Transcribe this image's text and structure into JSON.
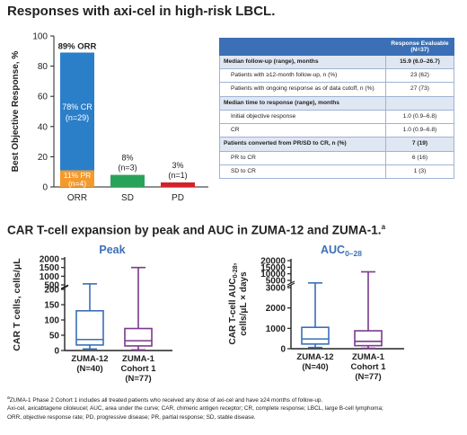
{
  "titles": {
    "top": "Responses with axi-cel in high-risk LBCL.",
    "bottom_main": "CAR T-cell expansion by peak and AUC in ZUMA-12 and ZUMA-1.",
    "bottom_sup": "a"
  },
  "chart_data": [
    {
      "type": "bar",
      "ylabel": "Best Objective Response, %",
      "ylim": [
        0,
        100
      ],
      "yticks": [
        0,
        20,
        40,
        60,
        80,
        100
      ],
      "categories": [
        "ORR",
        "SD",
        "PD"
      ],
      "series": [
        {
          "values": [
            78,
            0,
            0
          ],
          "color": "#2b7fc9"
        },
        {
          "values": [
            11,
            8,
            3
          ],
          "colors": [
            "#f39a2c",
            "#2aa35a",
            "#d62028"
          ]
        }
      ],
      "annotations": {
        "orr_top": "89% ORR",
        "cr_line1": "78% CR",
        "cr_line2": "(n=29)",
        "pr_line1": "11% PR",
        "pr_line2": "(n=4)",
        "sd_line1": "8%",
        "sd_line2": "(n=3)",
        "pd_line1": "3%",
        "pd_line2": "(n=1)"
      }
    },
    {
      "type": "box",
      "title": "Peak",
      "ylabel": "CAR T cells, cells/μL",
      "yticks": [
        "0",
        "50",
        "100",
        "150",
        "200",
        "500",
        "1000",
        "1500",
        "2000"
      ],
      "categories": [
        {
          "line1": "ZUMA-12",
          "line2": "(N=40)"
        },
        {
          "line1": "ZUMA-1",
          "line2": "Cohort 1",
          "line3": "(N=77)"
        }
      ],
      "boxes": [
        {
          "min": 5,
          "q1": 18,
          "median": 36,
          "q3": 130,
          "max": 560,
          "color": "#3b6fb6"
        },
        {
          "min": 2,
          "q1": 15,
          "median": 32,
          "q3": 72,
          "max": 1500,
          "color": "#7a3a8c"
        }
      ]
    },
    {
      "type": "box",
      "title_main": "AUC",
      "title_sub": "0–28",
      "ylabel_line1": "CAR T-cell AUC",
      "ylabel_sub": "0-28",
      "ylabel_line1_end": ",",
      "ylabel_line2": "cells/μL × days",
      "yticks": [
        "0",
        "1000",
        "2000",
        "3000",
        "5000",
        "10000",
        "15000",
        "20000"
      ],
      "categories": [
        {
          "line1": "ZUMA-12",
          "line2": "(N=40)"
        },
        {
          "line1": "ZUMA-1",
          "line2": "Cohort 1",
          "line3": "(N=77)"
        }
      ],
      "boxes": [
        {
          "min": 60,
          "q1": 230,
          "median": 480,
          "q3": 1050,
          "max": 4300,
          "color": "#3b6fb6"
        },
        {
          "min": 20,
          "q1": 150,
          "median": 360,
          "q3": 880,
          "max": 11500,
          "color": "#7a3a8c"
        }
      ]
    }
  ],
  "table": {
    "header": "Response Evaluable",
    "header_n": "(N=37)",
    "rows": [
      {
        "label": "Median follow-up (range), months",
        "value": "15.9 (6.0–26.7)",
        "kind": "hdr"
      },
      {
        "label": "Patients with ≥12-month follow-up, n (%)",
        "value": "23 (62)",
        "kind": "ind"
      },
      {
        "label": "Patients with ongoing response as of data cutoff, n (%)",
        "value": "27 (73)",
        "kind": "ind"
      },
      {
        "label": "Median time to response (range), months",
        "value": "",
        "kind": "hdr"
      },
      {
        "label": "Initial objective response",
        "value": "1.0 (0.9–6.8)",
        "kind": "ind"
      },
      {
        "label": "CR",
        "value": "1.0 (0.9–6.8)",
        "kind": "ind"
      },
      {
        "label": "Patients converted from PR/SD to CR, n (%)",
        "value": "7 (19)",
        "kind": "hdr"
      },
      {
        "label": "PR to CR",
        "value": "6 (16)",
        "kind": "ind"
      },
      {
        "label": "SD to CR",
        "value": "1 (3)",
        "kind": "ind"
      }
    ]
  },
  "footnotes": {
    "sup": "a",
    "line1": "ZUMA-1 Phase 2 Cohort 1 includes all treated patients who received any dose of axi-cel and have ≥24 months of follow-up.",
    "line2": "Axi-cel, axicabtagene ciloleucel; AUC, area under the curve; CAR, chimeric antigen receptor; CR, complete response; LBCL, large B-cell lymphoma;",
    "line3": "ORR, objective response rate; PD, progressive disease; PR, partial response; SD, stable disease."
  }
}
